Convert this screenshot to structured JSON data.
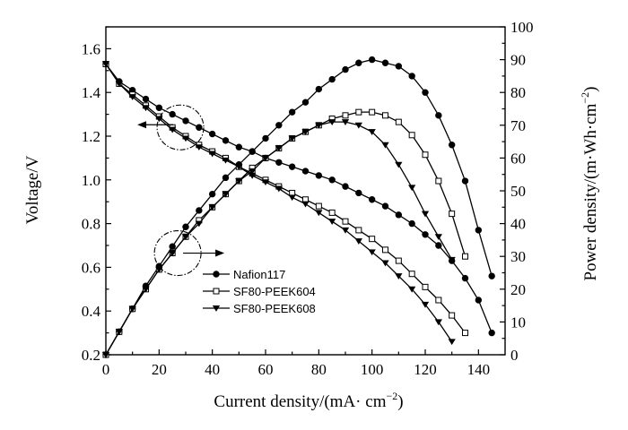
{
  "chart_data": {
    "type": "line",
    "title": "",
    "xlabel": "Current density/(mA· cm",
    "xlabel_sup": "−2",
    "xlabel_close": ")",
    "ylabel_left": "Voltage/V",
    "ylabel_right": "Power density/(m·Wh·cm",
    "ylabel_right_sup": "−2",
    "ylabel_right_close": ")",
    "xlim": [
      0,
      150
    ],
    "ylim_left": [
      0.2,
      1.7
    ],
    "ylim_right": [
      0,
      100
    ],
    "x_ticks": [
      "0",
      "20",
      "40",
      "60",
      "80",
      "100",
      "120",
      "140"
    ],
    "y_left_ticks": [
      "0.2",
      "0.4",
      "0.6",
      "0.8",
      "1.0",
      "1.2",
      "1.4",
      "1.6"
    ],
    "y_right_ticks": [
      "0",
      "10",
      "20",
      "30",
      "40",
      "50",
      "60",
      "70",
      "80",
      "90",
      "100"
    ],
    "grid": false,
    "legend_position": "lower-left",
    "series": [
      {
        "name": "Nafion117",
        "marker": "circle-filled",
        "voltage": {
          "x": [
            0,
            5,
            10,
            15,
            20,
            25,
            30,
            35,
            40,
            45,
            50,
            55,
            60,
            65,
            70,
            75,
            80,
            85,
            90,
            95,
            100,
            105,
            110,
            115,
            120,
            125,
            130,
            135,
            140,
            145
          ],
          "y": [
            1.53,
            1.45,
            1.41,
            1.37,
            1.33,
            1.3,
            1.27,
            1.24,
            1.21,
            1.18,
            1.15,
            1.13,
            1.1,
            1.08,
            1.06,
            1.04,
            1.02,
            1.0,
            0.97,
            0.94,
            0.91,
            0.88,
            0.84,
            0.8,
            0.75,
            0.7,
            0.63,
            0.55,
            0.45,
            0.3
          ]
        },
        "power": {
          "x": [
            0,
            5,
            10,
            15,
            20,
            25,
            30,
            35,
            40,
            45,
            50,
            55,
            60,
            65,
            70,
            75,
            80,
            85,
            90,
            95,
            100,
            105,
            110,
            115,
            120,
            125,
            130,
            135,
            140,
            145
          ],
          "y": [
            0,
            7,
            14,
            21,
            27,
            33,
            39,
            44,
            49,
            54,
            58,
            62,
            66,
            70,
            74,
            77,
            81,
            84,
            87,
            89,
            90,
            89,
            88,
            85,
            80,
            73,
            64,
            53,
            38,
            24
          ]
        }
      },
      {
        "name": "SF80-PEEK604",
        "marker": "square-open",
        "voltage": {
          "x": [
            0,
            5,
            10,
            15,
            20,
            25,
            30,
            35,
            40,
            45,
            50,
            55,
            60,
            65,
            70,
            75,
            80,
            85,
            90,
            95,
            100,
            105,
            110,
            115,
            120,
            125,
            130,
            135
          ],
          "y": [
            1.53,
            1.44,
            1.39,
            1.34,
            1.29,
            1.24,
            1.2,
            1.16,
            1.13,
            1.1,
            1.06,
            1.03,
            1.0,
            0.97,
            0.94,
            0.91,
            0.88,
            0.85,
            0.81,
            0.77,
            0.73,
            0.68,
            0.63,
            0.57,
            0.51,
            0.45,
            0.38,
            0.3
          ]
        },
        "power": {
          "x": [
            0,
            5,
            10,
            15,
            20,
            25,
            30,
            35,
            40,
            45,
            50,
            55,
            60,
            65,
            70,
            75,
            80,
            85,
            90,
            95,
            100,
            105,
            110,
            115,
            120,
            125,
            130,
            135
          ],
          "y": [
            0,
            7,
            14,
            20,
            26,
            31,
            36,
            41,
            45,
            49,
            53,
            57,
            60,
            63,
            66,
            68,
            70,
            72,
            73,
            74,
            74,
            73,
            71,
            67,
            61,
            53,
            43,
            30
          ]
        }
      },
      {
        "name": "SF80-PEEK608",
        "marker": "triangle-down-filled",
        "voltage": {
          "x": [
            0,
            5,
            10,
            15,
            20,
            25,
            30,
            35,
            40,
            45,
            50,
            55,
            60,
            65,
            70,
            75,
            80,
            85,
            90,
            95,
            100,
            105,
            110,
            115,
            120,
            125,
            130
          ],
          "y": [
            1.53,
            1.44,
            1.38,
            1.33,
            1.28,
            1.23,
            1.19,
            1.15,
            1.12,
            1.09,
            1.06,
            1.02,
            0.99,
            0.96,
            0.92,
            0.89,
            0.85,
            0.81,
            0.77,
            0.72,
            0.67,
            0.62,
            0.56,
            0.5,
            0.43,
            0.35,
            0.26
          ]
        },
        "power": {
          "x": [
            0,
            5,
            10,
            15,
            20,
            25,
            30,
            35,
            40,
            45,
            50,
            55,
            60,
            65,
            70,
            75,
            80,
            85,
            90,
            95,
            100,
            105,
            110,
            115,
            120,
            125,
            130
          ],
          "y": [
            0,
            7,
            14,
            20,
            26,
            31,
            36,
            40,
            45,
            49,
            53,
            56,
            60,
            63,
            66,
            68,
            70,
            71,
            71,
            70,
            68,
            64,
            58,
            51,
            43,
            36,
            29
          ]
        }
      }
    ],
    "annotations": [
      {
        "kind": "dash-dot-circle",
        "x": 28,
        "y_left": 1.24,
        "points_to": "left-axis"
      },
      {
        "kind": "dash-dot-circle",
        "x": 27,
        "y_right": 31,
        "points_to": "right-axis"
      }
    ]
  }
}
